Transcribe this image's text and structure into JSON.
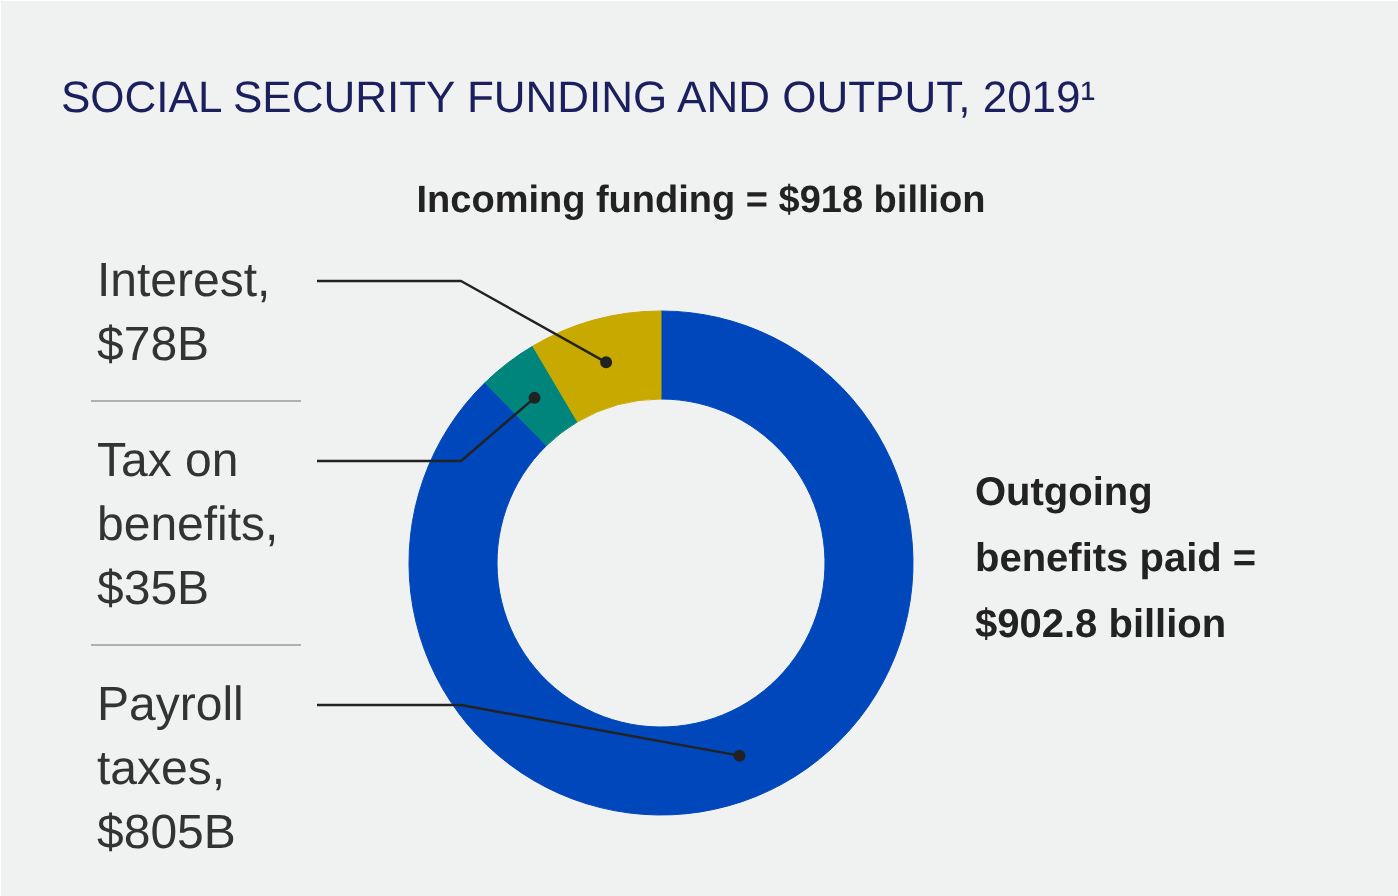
{
  "chart_data": {
    "type": "donut",
    "title": "SOCIAL SECURITY FUNDING AND OUTPUT, 2019¹",
    "subtitle": "Incoming funding = $918 billion",
    "categories": [
      "Payroll taxes, $805B",
      "Tax on benefits, $35B",
      "Interest, $78B"
    ],
    "values": [
      805,
      35,
      78
    ],
    "colors": [
      "#0047bb",
      "#00857c",
      "#c8a900"
    ],
    "annotations": [
      "Outgoing benefits paid = $902.8 billion"
    ]
  }
}
